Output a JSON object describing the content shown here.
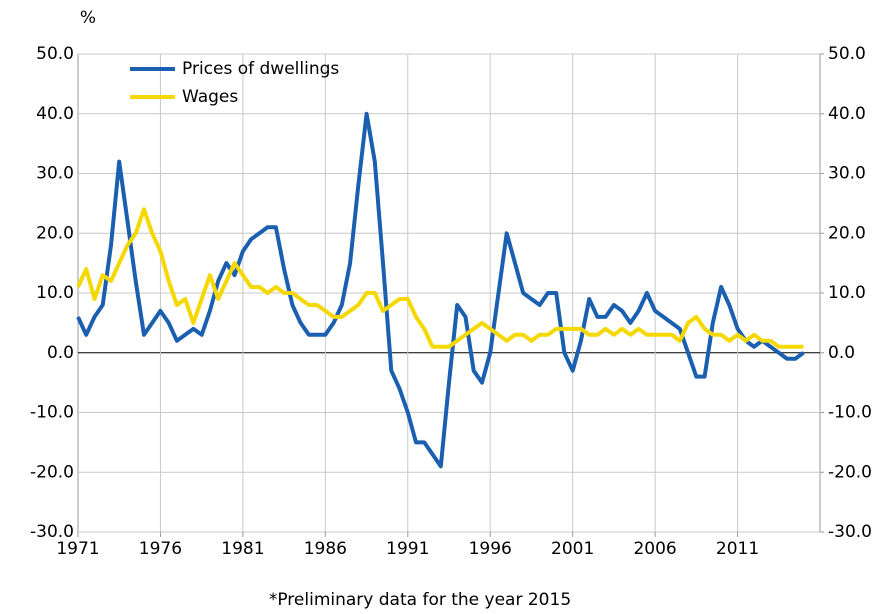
{
  "chart_data": {
    "type": "line",
    "title": "%",
    "footnote": "*Preliminary data for the year 2015",
    "x": [
      1971,
      1971.5,
      1972,
      1972.5,
      1973,
      1973.5,
      1974,
      1974.5,
      1975,
      1975.5,
      1976,
      1976.5,
      1977,
      1977.5,
      1978,
      1978.5,
      1979,
      1979.5,
      1980,
      1980.5,
      1981,
      1981.5,
      1982,
      1982.5,
      1983,
      1983.5,
      1984,
      1984.5,
      1985,
      1985.5,
      1986,
      1986.5,
      1987,
      1987.5,
      1988,
      1988.5,
      1989,
      1989.5,
      1990,
      1990.5,
      1991,
      1991.5,
      1992,
      1992.5,
      1993,
      1993.5,
      1994,
      1994.5,
      1995,
      1995.5,
      1996,
      1996.5,
      1997,
      1997.5,
      1998,
      1998.5,
      1999,
      1999.5,
      2000,
      2000.5,
      2001,
      2001.5,
      2002,
      2002.5,
      2003,
      2003.5,
      2004,
      2004.5,
      2005,
      2005.5,
      2006,
      2006.5,
      2007,
      2007.5,
      2008,
      2008.5,
      2009,
      2009.5,
      2010,
      2010.5,
      2011,
      2011.5,
      2012,
      2012.5,
      2013,
      2013.5,
      2014,
      2014.5,
      2015
    ],
    "series": [
      {
        "name": "Prices of dwellings",
        "color": "#1b5fb0",
        "values": [
          6,
          3,
          6,
          8,
          18,
          32,
          22,
          12,
          3,
          5,
          7,
          5,
          2,
          3,
          4,
          3,
          7,
          12,
          15,
          13,
          17,
          19,
          20,
          21,
          21,
          14,
          8,
          5,
          3,
          3,
          3,
          5,
          8,
          15,
          28,
          40,
          32,
          15,
          -3,
          -6,
          -10,
          -15,
          -15,
          -17,
          -19,
          -5,
          8,
          6,
          -3,
          -5,
          0,
          10,
          20,
          15,
          10,
          9,
          8,
          10,
          10,
          0,
          -3,
          2,
          9,
          6,
          6,
          8,
          7,
          5,
          7,
          10,
          7,
          6,
          5,
          4,
          0,
          -4,
          -4,
          5,
          11,
          8,
          4,
          2,
          1,
          2,
          1,
          0,
          -1,
          -1,
          0
        ]
      },
      {
        "name": "Wages",
        "color": "#f5d800",
        "values": [
          11,
          14,
          9,
          13,
          12,
          15,
          18,
          20,
          24,
          20,
          17,
          12,
          8,
          9,
          5,
          9,
          13,
          9,
          12,
          15,
          13,
          11,
          11,
          10,
          11,
          10,
          10,
          9,
          8,
          8,
          7,
          6,
          6,
          7,
          8,
          10,
          10,
          7,
          8,
          9,
          9,
          6,
          4,
          1,
          1,
          1,
          2,
          3,
          4,
          5,
          4,
          3,
          2,
          3,
          3,
          2,
          3,
          3,
          4,
          4,
          4,
          4,
          3,
          3,
          4,
          3,
          4,
          3,
          4,
          3,
          3,
          3,
          3,
          2,
          5,
          6,
          4,
          3,
          3,
          2,
          3,
          2,
          3,
          2,
          2,
          1,
          1,
          1,
          1
        ]
      }
    ],
    "xlim": [
      1971,
      2016
    ],
    "xticks": [
      1971,
      1976,
      1981,
      1986,
      1991,
      1996,
      2001,
      2006,
      2011
    ],
    "ylim": [
      -30,
      50
    ],
    "yticks": [
      {
        "value": -30,
        "label": "-30.0"
      },
      {
        "value": -20,
        "label": "-20.0"
      },
      {
        "value": -10,
        "label": "-10.0"
      },
      {
        "value": 0,
        "label": "0.0"
      },
      {
        "value": 10,
        "label": "10.0"
      },
      {
        "value": 20,
        "label": "20.0"
      },
      {
        "value": 30,
        "label": "30.0"
      },
      {
        "value": 40,
        "label": "40.0"
      },
      {
        "value": 50,
        "label": "50.0"
      }
    ],
    "y2lim": [
      -30,
      50
    ],
    "y2ticks": [
      {
        "value": -30,
        "label": "-30.0"
      },
      {
        "value": -20,
        "label": "-20.0"
      },
      {
        "value": -10,
        "label": "-10.0"
      },
      {
        "value": 0,
        "label": "0.0"
      },
      {
        "value": 10,
        "label": "10.0"
      },
      {
        "value": 20,
        "label": "20.0"
      },
      {
        "value": 30,
        "label": "30.0"
      },
      {
        "value": 40,
        "label": "40.0"
      },
      {
        "value": 50,
        "label": "50.0"
      }
    ],
    "grid": true,
    "legend": "upper left"
  }
}
